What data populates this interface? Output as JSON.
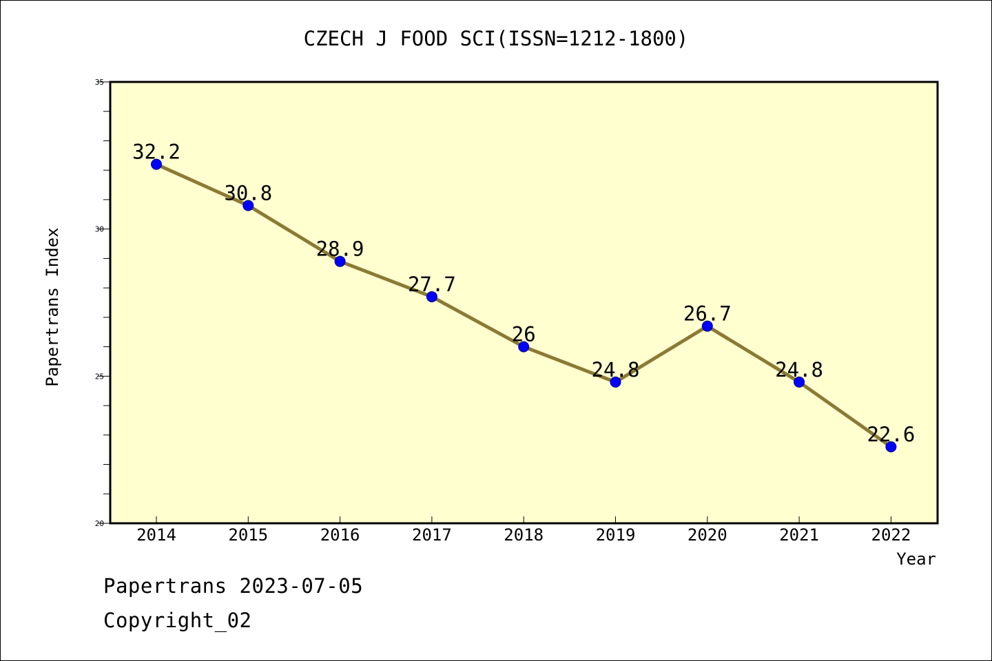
{
  "chart_data": {
    "type": "line",
    "title": "CZECH J FOOD SCI(ISSN=1212-1800)",
    "xlabel": "Year",
    "ylabel": "Papertrans Index",
    "categories": [
      "2014",
      "2015",
      "2016",
      "2017",
      "2018",
      "2019",
      "2020",
      "2021",
      "2022"
    ],
    "series": [
      {
        "values": [
          32.2,
          30.8,
          28.9,
          27.7,
          26,
          24.8,
          26.7,
          24.8,
          22.6
        ],
        "data_labels": [
          "32.2",
          "30.8",
          "28.9",
          "27.7",
          "26",
          "24.8",
          "26.7",
          "24.8",
          "22.6"
        ]
      }
    ],
    "ylim": [
      20,
      35
    ],
    "yticks": [
      "20",
      "25",
      "30",
      "35"
    ],
    "y_minor_step": 1,
    "grid": false,
    "legend": "none",
    "colors": {
      "plot_background": "#ffffd0",
      "line": "#8b7a35",
      "marker": "#0000ff",
      "axis": "#000000"
    }
  },
  "footer": {
    "stamp": "Papertrans 2023-07-05",
    "copyright": "Copyright_02"
  }
}
